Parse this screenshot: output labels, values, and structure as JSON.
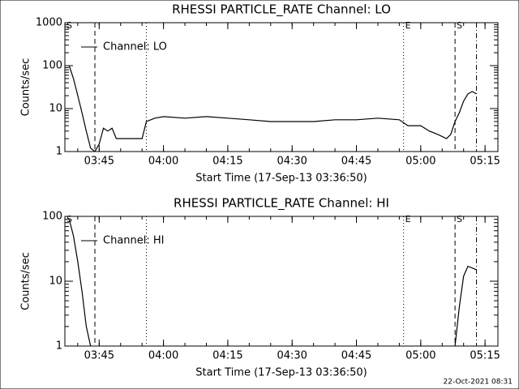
{
  "footer": "22-Oct-2021 08:31",
  "chart_data": [
    {
      "type": "line",
      "title": "RHESSI PARTICLE_RATE Channel: LO",
      "xlabel": "Start Time (17-Sep-13 03:36:50)",
      "ylabel": "Counts/sec",
      "x": [
        "03:38",
        "03:39",
        "03:40",
        "03:41",
        "03:42",
        "03:43",
        "03:44",
        "03:45",
        "03:46",
        "03:47",
        "03:48",
        "03:49",
        "03:52",
        "03:55",
        "03:56",
        "03:58",
        "04:00",
        "04:05",
        "04:10",
        "04:15",
        "04:20",
        "04:25",
        "04:30",
        "04:35",
        "04:40",
        "04:45",
        "04:50",
        "04:55",
        "04:57",
        "05:00",
        "05:02",
        "05:04",
        "05:06",
        "05:07",
        "05:08",
        "05:09",
        "05:10",
        "05:11",
        "05:12",
        "05:13"
      ],
      "series": [
        {
          "name": "Channel: LO",
          "color": "#000000",
          "values": [
            100,
            50,
            20,
            8,
            3,
            1.2,
            1,
            1.5,
            3.5,
            3,
            3.5,
            2,
            2,
            2,
            5,
            6,
            6.5,
            6,
            6.5,
            6,
            5.5,
            5,
            5,
            5,
            5.5,
            5.5,
            6,
            5.5,
            4,
            4,
            3,
            2.5,
            2,
            2.5,
            5,
            8,
            15,
            22,
            25,
            22
          ]
        }
      ],
      "xlim": [
        "03:37",
        "05:18"
      ],
      "ylim": [
        1,
        1000
      ],
      "log_y": true,
      "xticks": [
        "03:45",
        "04:00",
        "04:15",
        "04:30",
        "04:45",
        "05:00",
        "05:15"
      ],
      "yticks": [
        1,
        10,
        100,
        1000
      ],
      "legend": "upper left",
      "vlines": [
        {
          "x": "03:44",
          "style": "dashed"
        },
        {
          "x": "03:56",
          "style": "dotted"
        },
        {
          "x": "04:56",
          "style": "dotted"
        },
        {
          "x": "05:08",
          "style": "dashed"
        },
        {
          "x": "05:13",
          "style": "dashdot"
        }
      ],
      "annotations": [
        {
          "text": "S",
          "x": "03:37"
        },
        {
          "text": "E",
          "x": "04:56"
        },
        {
          "text": "S",
          "x": "05:08"
        }
      ]
    },
    {
      "type": "line",
      "title": "RHESSI PARTICLE_RATE Channel: HI",
      "xlabel": "Start Time (17-Sep-13 03:36:50)",
      "ylabel": "Counts/sec",
      "x": [
        "03:38",
        "03:39",
        "03:40",
        "03:41",
        "03:42",
        "03:43",
        "04:30",
        "05:08",
        "05:09",
        "05:10",
        "05:11",
        "05:12",
        "05:13"
      ],
      "series": [
        {
          "name": "Channel: HI",
          "color": "#000000",
          "values": [
            90,
            50,
            20,
            7,
            2,
            1,
            null,
            1,
            4,
            12,
            17,
            16,
            15
          ]
        }
      ],
      "xlim": [
        "03:37",
        "05:18"
      ],
      "ylim": [
        1,
        100
      ],
      "log_y": true,
      "xticks": [
        "03:45",
        "04:00",
        "04:15",
        "04:30",
        "04:45",
        "05:00",
        "05:15"
      ],
      "yticks": [
        1,
        10,
        100
      ],
      "legend": "upper left",
      "vlines": [
        {
          "x": "03:44",
          "style": "dashed"
        },
        {
          "x": "03:56",
          "style": "dotted"
        },
        {
          "x": "04:56",
          "style": "dotted"
        },
        {
          "x": "05:08",
          "style": "dashed"
        },
        {
          "x": "05:13",
          "style": "dashdot"
        }
      ],
      "annotations": [
        {
          "text": "S",
          "x": "03:37"
        },
        {
          "text": "E",
          "x": "04:56"
        },
        {
          "text": "S",
          "x": "05:08"
        }
      ]
    }
  ]
}
